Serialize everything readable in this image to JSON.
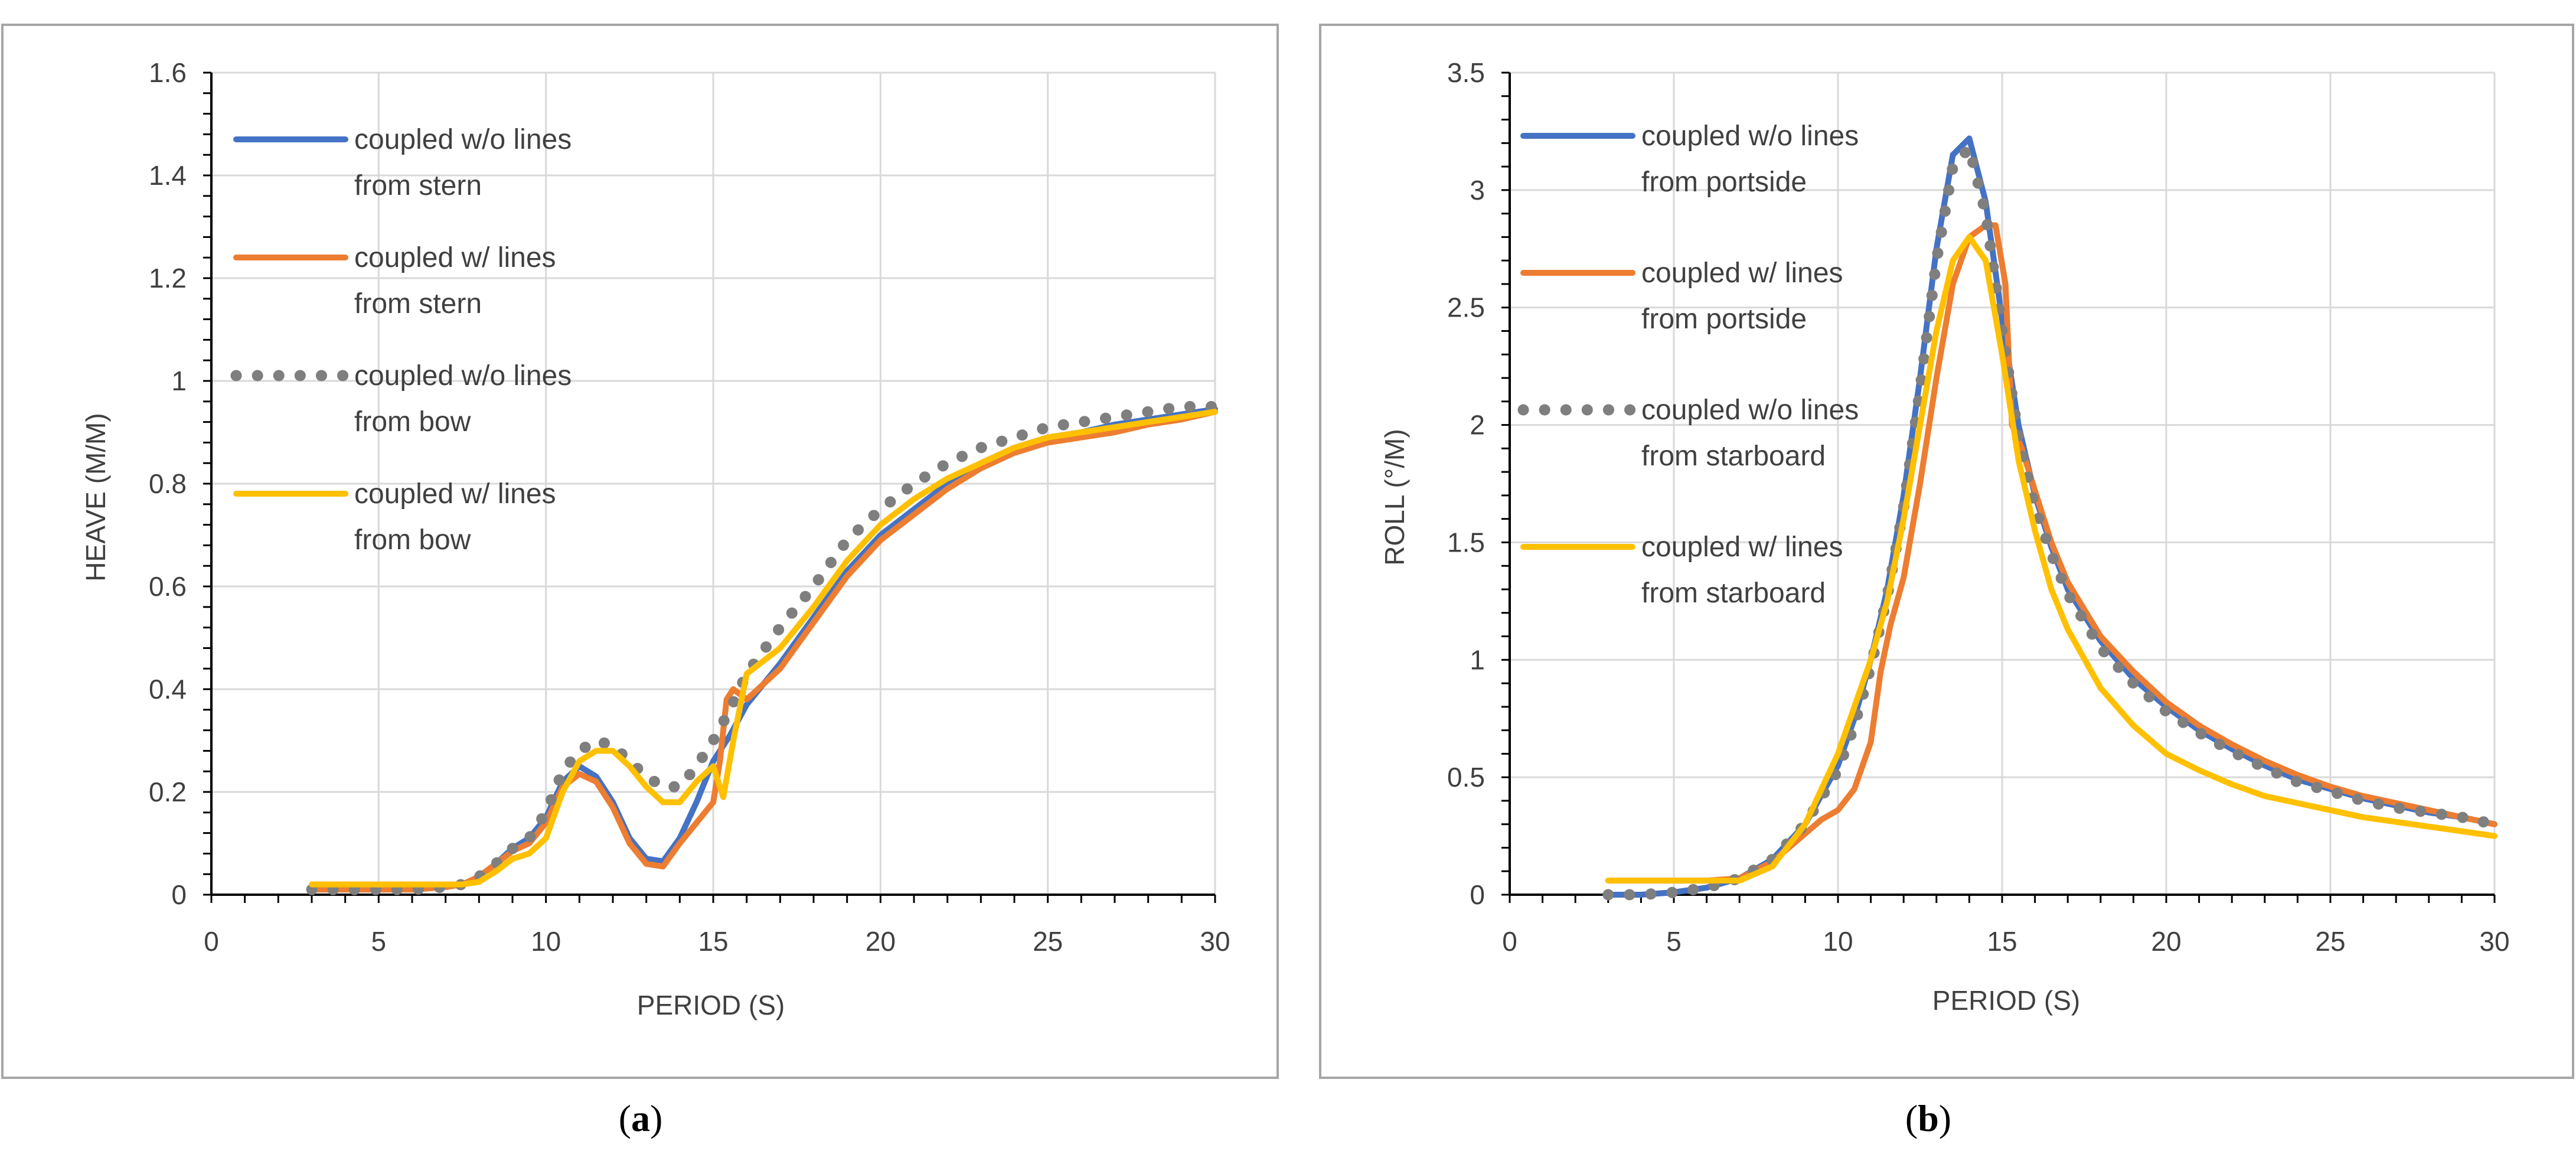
{
  "figure": {
    "captions": [
      {
        "open": "(",
        "label": "a",
        "close": ")"
      },
      {
        "open": "(",
        "label": "b",
        "close": ")"
      }
    ]
  },
  "colors": {
    "blue": "#4472c4",
    "orange": "#ed7d31",
    "gray": "#7f7f7f",
    "yellow": "#ffc000",
    "grid": "#d9d9d9",
    "axis": "#000000",
    "frame": "#a6a6a6"
  },
  "chart_data": [
    {
      "id": "a",
      "type": "line",
      "xlabel": "PERIOD (S)",
      "ylabel": "HEAVE (M/M)",
      "xlim": [
        0,
        30
      ],
      "ylim": [
        0,
        1.6
      ],
      "xticks": [
        0,
        5,
        10,
        15,
        20,
        25,
        30
      ],
      "xtick_labels": [
        "0",
        "5",
        "10",
        "15",
        "20",
        "25",
        "30"
      ],
      "yticks": [
        0,
        0.2,
        0.4,
        0.6,
        0.8,
        1.0,
        1.2,
        1.4,
        1.6
      ],
      "ytick_labels": [
        "0",
        "0.2",
        "0.4",
        "0.6",
        "0.8",
        "1",
        "1.2",
        "1.4",
        "1.6"
      ],
      "legend_position": "top-left",
      "series": [
        {
          "name": "coupled w/o lines from stern",
          "legend_lines": [
            "coupled w/o lines",
            "from stern"
          ],
          "color": "blue",
          "style": "solid",
          "x": [
            3,
            4,
            5,
            6,
            7,
            7.5,
            8,
            8.5,
            9,
            9.5,
            10,
            10.5,
            11,
            11.5,
            12,
            12.5,
            13,
            13.5,
            14,
            14.5,
            15,
            15.5,
            16,
            17,
            18,
            19,
            20,
            21,
            22,
            23,
            24,
            25,
            26,
            27,
            28,
            29,
            30
          ],
          "y": [
            0.01,
            0.01,
            0.01,
            0.01,
            0.015,
            0.02,
            0.035,
            0.06,
            0.09,
            0.11,
            0.15,
            0.22,
            0.25,
            0.23,
            0.18,
            0.11,
            0.07,
            0.065,
            0.11,
            0.18,
            0.26,
            0.31,
            0.37,
            0.45,
            0.54,
            0.63,
            0.7,
            0.75,
            0.8,
            0.84,
            0.87,
            0.89,
            0.9,
            0.915,
            0.925,
            0.935,
            0.945
          ]
        },
        {
          "name": "coupled w/ lines from stern",
          "legend_lines": [
            "coupled w/ lines",
            "from stern"
          ],
          "color": "orange",
          "style": "solid",
          "x": [
            3,
            4,
            5,
            6,
            7,
            7.5,
            8,
            8.5,
            9,
            9.5,
            10,
            10.5,
            11,
            11.5,
            12,
            12.5,
            13,
            13.5,
            14,
            14.5,
            15,
            15.2,
            15.4,
            15.6,
            16,
            17,
            18,
            19,
            20,
            21,
            22,
            23,
            24,
            25,
            26,
            27,
            28,
            29,
            30
          ],
          "y": [
            0.01,
            0.01,
            0.01,
            0.01,
            0.015,
            0.02,
            0.035,
            0.06,
            0.085,
            0.1,
            0.14,
            0.21,
            0.235,
            0.22,
            0.17,
            0.1,
            0.06,
            0.055,
            0.1,
            0.14,
            0.18,
            0.26,
            0.38,
            0.4,
            0.38,
            0.44,
            0.53,
            0.62,
            0.69,
            0.74,
            0.79,
            0.83,
            0.86,
            0.88,
            0.89,
            0.9,
            0.915,
            0.925,
            0.94
          ]
        },
        {
          "name": "coupled w/o lines from bow",
          "legend_lines": [
            "coupled w/o lines",
            "from bow"
          ],
          "color": "gray",
          "style": "dotted",
          "x": [
            3,
            4,
            5,
            6,
            7,
            7.5,
            8,
            8.5,
            9,
            9.5,
            10,
            10.5,
            11,
            11.5,
            12,
            12.5,
            13,
            13.5,
            14,
            14.5,
            15,
            15.5,
            16,
            17,
            18,
            19,
            20,
            21,
            22,
            23,
            24,
            25,
            26,
            27,
            28,
            29,
            30
          ],
          "y": [
            0.01,
            0.01,
            0.01,
            0.01,
            0.015,
            0.02,
            0.035,
            0.06,
            0.09,
            0.11,
            0.16,
            0.24,
            0.28,
            0.3,
            0.29,
            0.26,
            0.23,
            0.21,
            0.21,
            0.25,
            0.3,
            0.36,
            0.43,
            0.52,
            0.6,
            0.69,
            0.75,
            0.8,
            0.84,
            0.87,
            0.89,
            0.91,
            0.92,
            0.93,
            0.94,
            0.95,
            0.95
          ]
        },
        {
          "name": "coupled w/ lines from bow",
          "legend_lines": [
            "coupled w/ lines",
            "from bow"
          ],
          "color": "yellow",
          "style": "solid",
          "x": [
            3,
            4,
            5,
            6,
            7,
            7.5,
            8,
            8.5,
            9,
            9.5,
            10,
            10.5,
            11,
            11.5,
            12,
            12.5,
            13,
            13.5,
            14,
            14.5,
            15,
            15.3,
            15.6,
            16,
            17,
            18,
            19,
            20,
            21,
            22,
            23,
            24,
            25,
            26,
            27,
            28,
            29,
            30
          ],
          "y": [
            0.02,
            0.02,
            0.02,
            0.02,
            0.02,
            0.02,
            0.025,
            0.045,
            0.07,
            0.08,
            0.11,
            0.2,
            0.26,
            0.28,
            0.28,
            0.25,
            0.21,
            0.18,
            0.18,
            0.22,
            0.25,
            0.19,
            0.3,
            0.43,
            0.48,
            0.56,
            0.65,
            0.72,
            0.77,
            0.81,
            0.84,
            0.87,
            0.89,
            0.9,
            0.91,
            0.92,
            0.93,
            0.94
          ]
        }
      ]
    },
    {
      "id": "b",
      "type": "line",
      "xlabel": "PERIOD (S)",
      "ylabel": "ROLL (°/M)",
      "xlim": [
        0,
        30
      ],
      "ylim": [
        0,
        3.5
      ],
      "xticks": [
        0,
        5,
        10,
        15,
        20,
        25,
        30
      ],
      "xtick_labels": [
        "0",
        "5",
        "10",
        "15",
        "20",
        "25",
        "30"
      ],
      "yticks": [
        0,
        0.5,
        1.0,
        1.5,
        2.0,
        2.5,
        3.0,
        3.5
      ],
      "ytick_labels": [
        "0",
        "0.5",
        "1",
        "1.5",
        "2",
        "2.5",
        "3",
        "3.5"
      ],
      "legend_position": "top-left",
      "series": [
        {
          "name": "coupled w/o lines from portside",
          "legend_lines": [
            "coupled w/o lines",
            "from portside"
          ],
          "color": "blue",
          "style": "solid",
          "x": [
            3,
            4,
            5,
            6,
            7,
            8,
            9,
            10,
            10.5,
            11,
            11.5,
            12,
            12.5,
            13,
            13.5,
            14,
            14.5,
            15,
            15.5,
            16,
            16.5,
            17,
            18,
            19,
            20,
            21,
            22,
            23,
            24,
            25,
            26,
            27,
            28,
            29,
            30
          ],
          "y": [
            0.0,
            0.0,
            0.01,
            0.03,
            0.07,
            0.15,
            0.3,
            0.55,
            0.75,
            1.0,
            1.3,
            1.7,
            2.2,
            2.75,
            3.15,
            3.22,
            2.95,
            2.45,
            2.0,
            1.7,
            1.48,
            1.3,
            1.08,
            0.92,
            0.8,
            0.7,
            0.62,
            0.55,
            0.49,
            0.45,
            0.41,
            0.38,
            0.35,
            0.33,
            0.3
          ]
        },
        {
          "name": "coupled w/ lines from portside",
          "legend_lines": [
            "coupled w/ lines",
            "from portside"
          ],
          "color": "orange",
          "style": "solid",
          "x": [
            3,
            4,
            5,
            6,
            7,
            8,
            9,
            9.5,
            10,
            10.5,
            11,
            11.3,
            11.6,
            12,
            12.5,
            13,
            13.5,
            14,
            14.5,
            14.8,
            15.1,
            15.3,
            15.6,
            16,
            16.5,
            17,
            18,
            19,
            20,
            21,
            22,
            23,
            24,
            25,
            26,
            27,
            28,
            29,
            30
          ],
          "y": [
            0.06,
            0.06,
            0.06,
            0.06,
            0.07,
            0.14,
            0.26,
            0.32,
            0.36,
            0.45,
            0.65,
            0.95,
            1.15,
            1.35,
            1.75,
            2.2,
            2.6,
            2.8,
            2.85,
            2.85,
            2.6,
            2.0,
            1.9,
            1.72,
            1.5,
            1.33,
            1.1,
            0.95,
            0.82,
            0.72,
            0.64,
            0.57,
            0.51,
            0.46,
            0.42,
            0.39,
            0.36,
            0.33,
            0.3
          ]
        },
        {
          "name": "coupled w/o lines from starboard",
          "legend_lines": [
            "coupled w/o lines",
            "from starboard"
          ],
          "color": "gray",
          "style": "dotted",
          "x": [
            3,
            4,
            5,
            6,
            7,
            8,
            9,
            10,
            10.5,
            11,
            11.5,
            12,
            12.5,
            13,
            13.5,
            14,
            14.5,
            15,
            15.5,
            16,
            16.5,
            17,
            18,
            19,
            20,
            21,
            22,
            23,
            24,
            25,
            26,
            27,
            28,
            29,
            30
          ],
          "y": [
            0.0,
            0.0,
            0.01,
            0.03,
            0.07,
            0.15,
            0.3,
            0.53,
            0.72,
            0.97,
            1.27,
            1.65,
            2.15,
            2.7,
            3.1,
            3.18,
            2.9,
            2.4,
            1.95,
            1.65,
            1.45,
            1.28,
            1.05,
            0.9,
            0.78,
            0.69,
            0.61,
            0.54,
            0.48,
            0.44,
            0.4,
            0.37,
            0.35,
            0.33,
            0.3
          ]
        },
        {
          "name": "coupled w/ lines from starboard",
          "legend_lines": [
            "coupled w/ lines",
            "from starboard"
          ],
          "color": "yellow",
          "style": "solid",
          "x": [
            3,
            4,
            5,
            6,
            7,
            8,
            9,
            10,
            10.5,
            11,
            11.5,
            12,
            12.5,
            13,
            13.5,
            14,
            14.5,
            15,
            15.5,
            16,
            16.5,
            17,
            18,
            19,
            20,
            21,
            22,
            23,
            24,
            25,
            26,
            27,
            28,
            29,
            30
          ],
          "y": [
            0.06,
            0.06,
            0.06,
            0.06,
            0.06,
            0.12,
            0.3,
            0.6,
            0.8,
            1.0,
            1.25,
            1.6,
            2.0,
            2.4,
            2.7,
            2.8,
            2.7,
            2.3,
            1.85,
            1.55,
            1.3,
            1.13,
            0.88,
            0.72,
            0.6,
            0.53,
            0.47,
            0.42,
            0.39,
            0.36,
            0.33,
            0.31,
            0.29,
            0.27,
            0.25
          ]
        }
      ]
    }
  ]
}
